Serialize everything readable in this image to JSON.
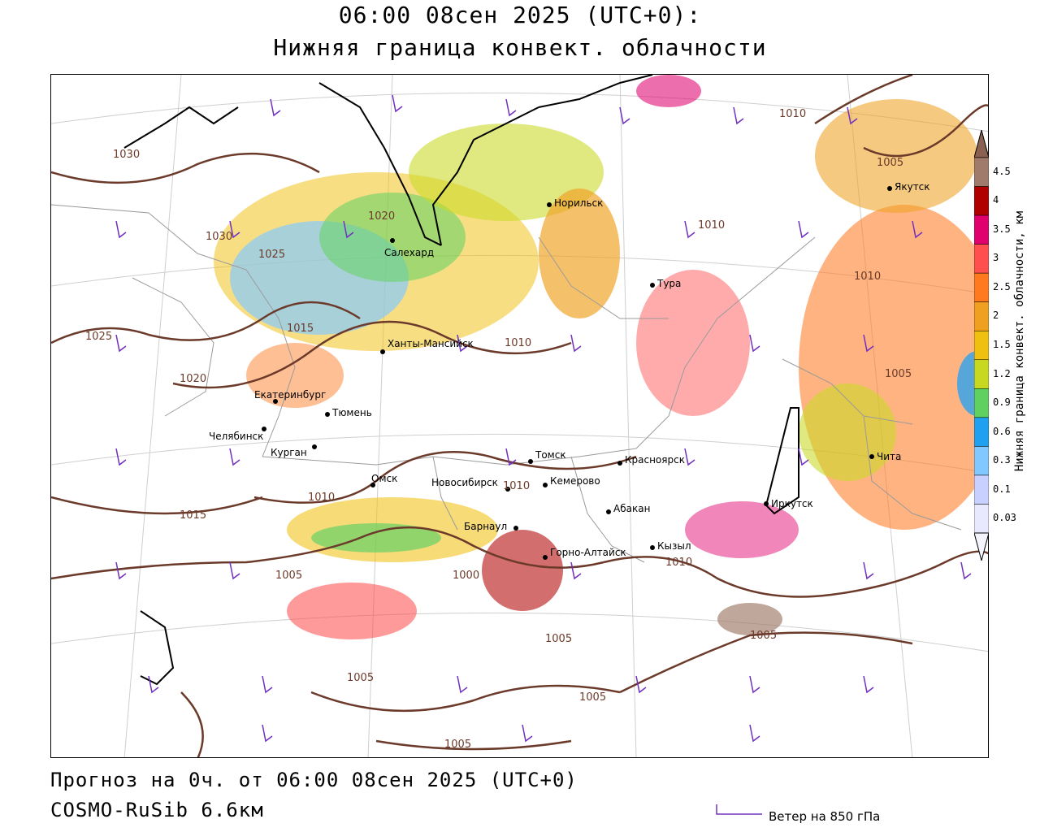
{
  "header": {
    "line1": "06:00 08сен 2025 (UTC+0):",
    "line2": "Нижняя граница конвект. облачности"
  },
  "footer": {
    "forecast": "Прогноз на 0ч. от 06:00 08сен 2025 (UTC+0)",
    "model": "COSMO-RuSib 6.6км",
    "wind_legend": "Ветер на 850 гПа"
  },
  "colorbar": {
    "title": "Нижняя граница конвект. облачности, км",
    "levels": [
      "4.5",
      "4",
      "3.5",
      "3",
      "2.5",
      "2",
      "1.5",
      "1.2",
      "0.9",
      "0.6",
      "0.3",
      "0.1",
      "0.03"
    ],
    "colors": [
      "#a07a6a",
      "#b00000",
      "#e0006e",
      "#ff4f4f",
      "#ff7a1f",
      "#f0a020",
      "#f0c010",
      "#c8d820",
      "#60d060",
      "#20a0f0",
      "#80c8ff",
      "#c8d0ff",
      "#e8e8ff"
    ]
  },
  "cities": [
    {
      "name": "Норильск"
    },
    {
      "name": "Салехард"
    },
    {
      "name": "Тура"
    },
    {
      "name": "Якутск"
    },
    {
      "name": "Ханты-Мансийск"
    },
    {
      "name": "Екатеринбург"
    },
    {
      "name": "Тюмень"
    },
    {
      "name": "Челябинск"
    },
    {
      "name": "Курган"
    },
    {
      "name": "Омск"
    },
    {
      "name": "Томск"
    },
    {
      "name": "Красноярск"
    },
    {
      "name": "Новосибирск"
    },
    {
      "name": "Кемерово"
    },
    {
      "name": "Абакан"
    },
    {
      "name": "Иркутск"
    },
    {
      "name": "Чита"
    },
    {
      "name": "Барнаул"
    },
    {
      "name": "Горно-Алтайск"
    },
    {
      "name": "Кызыл"
    }
  ],
  "isobars": [
    "1030",
    "1030",
    "1025",
    "1025",
    "1020",
    "1020",
    "1015",
    "1015",
    "1010",
    "1010",
    "1010",
    "1010",
    "1010",
    "1010",
    "1010",
    "1005",
    "1005",
    "1005",
    "1005",
    "1005",
    "1005",
    "1005",
    "1005",
    "1000"
  ]
}
